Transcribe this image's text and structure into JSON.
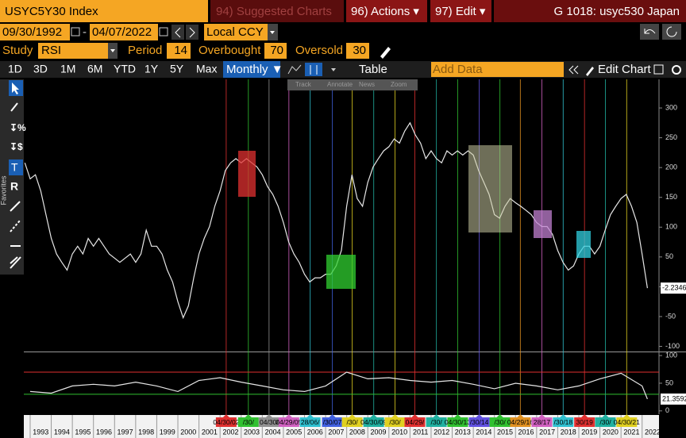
{
  "header": {
    "security": "USYC5Y30 Index",
    "suggested": "94) Suggested Charts",
    "actions": "96) Actions ▾",
    "edit": "97) Edit ▾",
    "page": "G 1018: usyc530 Japan"
  },
  "dates": {
    "start": "09/30/1992",
    "separator": "-",
    "end": "04/07/2022",
    "currency": "Local CCY"
  },
  "study": {
    "label": "Study",
    "name": "RSI",
    "period_label": "Period",
    "period": 14,
    "overbought_label": "Overbought",
    "overbought": 70,
    "oversold_label": "Oversold",
    "oversold": 30
  },
  "ranges": [
    "1D",
    "3D",
    "1M",
    "6M",
    "YTD",
    "1Y",
    "5Y",
    "Max"
  ],
  "frequency": "Monthly ▼",
  "table": "Table",
  "add_data": "Add Data",
  "edit_chart": "Edit Chart",
  "tools": [
    "Track",
    "Annotate",
    "News",
    "Zoom"
  ],
  "favorites": "Favorites",
  "chart_data": [
    {
      "type": "line",
      "x": [
        1992.75,
        1993,
        1993.25,
        1993.5,
        1993.75,
        1994,
        1994.25,
        1994.5,
        1994.75,
        1995,
        1995.25,
        1995.5,
        1995.75,
        1996,
        1996.25,
        1996.5,
        1996.75,
        1997,
        1997.25,
        1997.5,
        1997.75,
        1998,
        1998.25,
        1998.5,
        1998.75,
        1999,
        1999.25,
        1999.5,
        1999.75,
        2000,
        2000.25,
        2000.5,
        2000.75,
        2001,
        2001.25,
        2001.5,
        2001.75,
        2002,
        2002.25,
        2002.5,
        2002.75,
        2003,
        2003.25,
        2003.5,
        2003.75,
        2004,
        2004.25,
        2004.5,
        2004.75,
        2005,
        2005.25,
        2005.5,
        2005.75,
        2006,
        2006.25,
        2006.5,
        2006.75,
        2007,
        2007.25,
        2007.5,
        2007.75,
        2008,
        2008.25,
        2008.5,
        2008.75,
        2009,
        2009.25,
        2009.5,
        2009.75,
        2010,
        2010.25,
        2010.5,
        2010.75,
        2011,
        2011.25,
        2011.5,
        2011.75,
        2012,
        2012.25,
        2012.5,
        2012.75,
        2013,
        2013.25,
        2013.5,
        2013.75,
        2014,
        2014.25,
        2014.5,
        2014.75,
        2015,
        2015.25,
        2015.5,
        2015.75,
        2016,
        2016.25,
        2016.5,
        2016.75,
        2017,
        2017.25,
        2017.5,
        2017.75,
        2018,
        2018.25,
        2018.5,
        2018.75,
        2019,
        2019.25,
        2019.5,
        2019.75,
        2020,
        2020.25,
        2020.5,
        2020.75,
        2021,
        2021.25,
        2021.5,
        2021.75,
        2022,
        2022.25
      ],
      "series": [
        {
          "color": "#e6e6e6",
          "values": [
            208,
            181,
            188,
            161,
            121,
            81,
            55,
            41,
            28,
            55,
            68,
            55,
            81,
            68,
            81,
            68,
            55,
            48,
            41,
            48,
            55,
            41,
            55,
            95,
            68,
            68,
            55,
            28,
            8,
            -25,
            -52,
            -32,
            15,
            55,
            81,
            101,
            135,
            161,
            195,
            208,
            215,
            208,
            215,
            208,
            201,
            188,
            168,
            155,
            135,
            108,
            75,
            55,
            41,
            21,
            8,
            15,
            15,
            21,
            21,
            35,
            61,
            135,
            188,
            148,
            135,
            175,
            201,
            215,
            228,
            235,
            248,
            241,
            261,
            275,
            255,
            241,
            215,
            228,
            215,
            208,
            228,
            221,
            228,
            221,
            228,
            221,
            195,
            175,
            155,
            121,
            115,
            135,
            148,
            141,
            135,
            128,
            121,
            108,
            101,
            101,
            88,
            61,
            41,
            28,
            35,
            55,
            68,
            68,
            55,
            68,
            95,
            121,
            135,
            148,
            155,
            135,
            108,
            55,
            -2.2346
          ]
        }
      ],
      "xlim": [
        1992.7,
        2022.8
      ],
      "ylim": [
        -106,
        348
      ],
      "xticks": [
        1993,
        1994,
        1995,
        1996,
        1997,
        1998,
        1999,
        2000,
        2001,
        2002,
        2003,
        2004,
        2005,
        2006,
        2007,
        2008,
        2009,
        2010,
        2011,
        2012,
        2013,
        2014,
        2015,
        2016,
        2017,
        2018,
        2019,
        2020,
        2021,
        2022
      ],
      "yticks": [
        300,
        250,
        200,
        150,
        100,
        50,
        0,
        -50,
        -100
      ],
      "events": {
        "x": [
          2002.29,
          2003.34,
          2004.32,
          2005.26,
          2006.27,
          2007.32,
          2008.26,
          2009.28,
          2010.29,
          2011.23,
          2012.25,
          2013.26,
          2014.28,
          2015.26,
          2016.23,
          2017.25,
          2018.26,
          2019.27,
          2020.26,
          2021.27
        ],
        "labels": [
          "04/30/02",
          "/30/",
          "04/30/",
          "04/29/05",
          "28/06/",
          "/30/07",
          "/30/",
          "04/30/09",
          "/30/",
          "04/29/",
          "/30/",
          "04/30/13",
          "/30/14",
          "/30/",
          "04/29/16",
          "28/17",
          "/30/18",
          "30/19",
          "/30/",
          "04/30/21"
        ],
        "colors": [
          "#e03030",
          "#30c030",
          "#909090",
          "#d060c0",
          "#30c0d0",
          "#4060e0",
          "#e0d020",
          "#20b0a0",
          "#e0d020",
          "#e03030",
          "#20b0a0",
          "#30c030",
          "#6050e0",
          "#30c030",
          "#e09020",
          "#d060c0",
          "#30c0d0",
          "#e03030",
          "#20b0a0",
          "#e0d020"
        ]
      }
    },
    {
      "type": "line",
      "x": [
        1993,
        1994,
        1995,
        1996,
        1997,
        1998,
        1999,
        2000,
        2001,
        2002,
        2003,
        2004,
        2005,
        2006,
        2007,
        2008,
        2009,
        2010,
        2011,
        2012,
        2013,
        2014,
        2015,
        2016,
        2017,
        2018,
        2019,
        2020,
        2021,
        2022,
        2022.25
      ],
      "series": [
        {
          "color": "#e6e6e6",
          "values": [
            35,
            32,
            45,
            48,
            45,
            52,
            45,
            35,
            55,
            60,
            52,
            45,
            38,
            35,
            45,
            70,
            58,
            60,
            55,
            52,
            55,
            48,
            40,
            50,
            45,
            38,
            45,
            58,
            68,
            45,
            21.3592
          ]
        }
      ],
      "xlim": [
        1992.7,
        2022.8
      ],
      "ylim": [
        -6,
        103
      ],
      "yticks": [
        100,
        50,
        0
      ],
      "overbought_color": "#e03030",
      "oversold_color": "#30c030"
    }
  ]
}
